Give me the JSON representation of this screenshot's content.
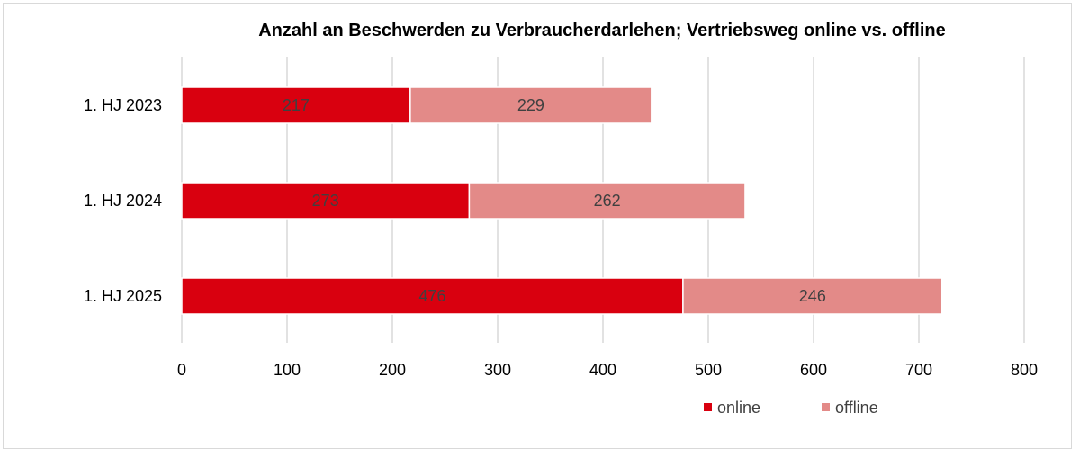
{
  "chart_data": {
    "type": "bar",
    "orientation": "horizontal",
    "stacked": true,
    "title": "Anzahl an Beschwerden zu Verbraucherdarlehen;  Vertriebsweg online vs. offline",
    "categories": [
      "1. HJ 2023",
      "1. HJ 2024",
      "1. HJ 2025"
    ],
    "series": [
      {
        "name": "online",
        "values": [
          217,
          273,
          476
        ],
        "color": "#d9000f"
      },
      {
        "name": "offline",
        "values": [
          229,
          262,
          246
        ],
        "color": "#e38a88"
      }
    ],
    "xlim": [
      0,
      800
    ],
    "xticks": [
      0,
      100,
      200,
      300,
      400,
      500,
      600,
      700,
      800
    ],
    "grid": true,
    "legend": "bottom-right"
  }
}
